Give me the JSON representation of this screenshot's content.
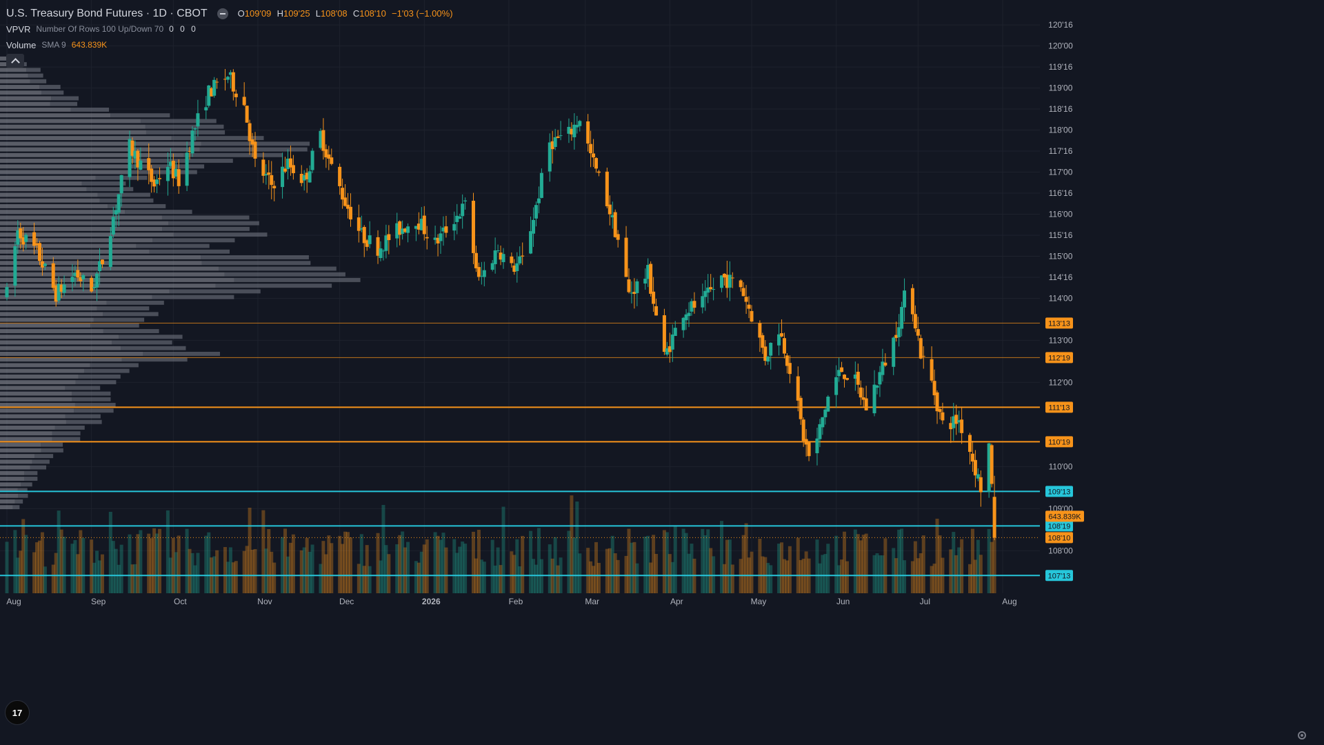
{
  "legend": {
    "title": "U.S. Treasury Bond Futures · 1D · CBOT",
    "open_key": "O",
    "open": "109'09",
    "high_key": "H",
    "high": "109'25",
    "low_key": "L",
    "low": "108'08",
    "close_key": "C",
    "close": "108'10",
    "change": "−1'03 (−1.00%)",
    "vpvr_name": "VPVR",
    "vpvr_params": "Number Of Rows 100 Up/Down 70",
    "vpvr_values": "0 0 0",
    "volume_name": "Volume",
    "volume_params": "SMA 9",
    "volume_value": "643.839K"
  },
  "logo": {
    "text": "17"
  },
  "colors": {
    "background": "#131722",
    "up": "#22ab94",
    "down": "#f7931a",
    "grid": "#1e222d",
    "axis_text": "#b2b5be",
    "level_orange": "#f7931a",
    "level_cyan": "#26c6da"
  },
  "chart_data": {
    "type": "candlestick",
    "title": "U.S. Treasury Bond Futures · 1D · CBOT",
    "y_unit": "points and 32nds",
    "ylim": [
      107.3,
      120.6
    ],
    "y_ticks": [
      "120'16",
      "120'00",
      "119'16",
      "119'00",
      "118'16",
      "118'00",
      "117'16",
      "117'00",
      "116'16",
      "116'00",
      "115'16",
      "115'00",
      "114'16",
      "114'00",
      "113'00",
      "112'00",
      "110'00",
      "109'00",
      "108'00"
    ],
    "x_ticks": [
      {
        "label": "Aug",
        "date": "2025-08-01"
      },
      {
        "label": "Sep",
        "date": "2025-09-01"
      },
      {
        "label": "Oct",
        "date": "2025-10-01"
      },
      {
        "label": "Nov",
        "date": "2025-11-01"
      },
      {
        "label": "Dec",
        "date": "2025-12-01"
      },
      {
        "label": "2026",
        "date": "2026-01-01"
      },
      {
        "label": "Feb",
        "date": "2026-02-01"
      },
      {
        "label": "Mar",
        "date": "2026-03-01"
      },
      {
        "label": "Apr",
        "date": "2026-04-01"
      },
      {
        "label": "May",
        "date": "2026-05-01"
      },
      {
        "label": "Jun",
        "date": "2026-06-01"
      },
      {
        "label": "Jul",
        "date": "2026-07-01"
      },
      {
        "label": "Aug",
        "date": "2026-08-01"
      }
    ],
    "x_range": [
      "2025-08-01",
      "2026-08-23"
    ],
    "price_path": {
      "start_date": "2025-08-01",
      "end_date": "2026-07-29",
      "anchors": [
        [
          "2025-08-01",
          114.1
        ],
        [
          "2025-08-05",
          115.6
        ],
        [
          "2025-08-12",
          115.1
        ],
        [
          "2025-08-19",
          114.1
        ],
        [
          "2025-08-26",
          114.6
        ],
        [
          "2025-09-01",
          114.2
        ],
        [
          "2025-09-05",
          114.9
        ],
        [
          "2025-09-10",
          116.2
        ],
        [
          "2025-09-15",
          117.6
        ],
        [
          "2025-09-19",
          117.2
        ],
        [
          "2025-09-24",
          116.7
        ],
        [
          "2025-09-29",
          117.2
        ],
        [
          "2025-10-03",
          116.8
        ],
        [
          "2025-10-08",
          117.9
        ],
        [
          "2025-10-14",
          118.9
        ],
        [
          "2025-10-21",
          119.3
        ],
        [
          "2025-10-27",
          118.6
        ],
        [
          "2025-10-31",
          117.2
        ],
        [
          "2025-11-06",
          116.7
        ],
        [
          "2025-11-12",
          117.2
        ],
        [
          "2025-11-18",
          116.8
        ],
        [
          "2025-11-24",
          117.9
        ],
        [
          "2025-11-28",
          117.1
        ],
        [
          "2025-12-03",
          116.3
        ],
        [
          "2025-12-09",
          115.5
        ],
        [
          "2025-12-15",
          115.2
        ],
        [
          "2025-12-22",
          115.6
        ],
        [
          "2025-12-29",
          115.9
        ],
        [
          "2026-01-05",
          115.3
        ],
        [
          "2026-01-12",
          115.9
        ],
        [
          "2026-01-16",
          116.2
        ],
        [
          "2026-01-21",
          114.4
        ],
        [
          "2026-01-28",
          115.2
        ],
        [
          "2026-02-02",
          114.7
        ],
        [
          "2026-02-06",
          114.9
        ],
        [
          "2026-02-11",
          116.2
        ],
        [
          "2026-02-16",
          117.7
        ],
        [
          "2026-02-23",
          117.9
        ],
        [
          "2026-02-27",
          118.3
        ],
        [
          "2026-03-03",
          117.4
        ],
        [
          "2026-03-09",
          116.3
        ],
        [
          "2026-03-13",
          115.4
        ],
        [
          "2026-03-17",
          114.1
        ],
        [
          "2026-03-24",
          114.6
        ],
        [
          "2026-03-30",
          112.6
        ],
        [
          "2026-04-06",
          113.7
        ],
        [
          "2026-04-13",
          113.9
        ],
        [
          "2026-04-20",
          114.5
        ],
        [
          "2026-04-27",
          114.3
        ],
        [
          "2026-05-01",
          113.6
        ],
        [
          "2026-05-06",
          112.6
        ],
        [
          "2026-05-11",
          113.3
        ],
        [
          "2026-05-16",
          112.1
        ],
        [
          "2026-05-20",
          110.7
        ],
        [
          "2026-05-23",
          110.0
        ],
        [
          "2026-05-26",
          110.9
        ],
        [
          "2026-05-30",
          111.9
        ],
        [
          "2026-06-03",
          112.3
        ],
        [
          "2026-06-08",
          112.0
        ],
        [
          "2026-06-12",
          111.4
        ],
        [
          "2026-06-17",
          112.2
        ],
        [
          "2026-06-22",
          113.0
        ],
        [
          "2026-06-26",
          114.0
        ],
        [
          "2026-06-29",
          113.8
        ],
        [
          "2026-07-02",
          112.7
        ],
        [
          "2026-07-06",
          112.0
        ],
        [
          "2026-07-10",
          111.0
        ],
        [
          "2026-07-16",
          111.1
        ],
        [
          "2026-07-20",
          110.4
        ],
        [
          "2026-07-24",
          109.5
        ],
        [
          "2026-07-27",
          110.5
        ],
        [
          "2026-07-29",
          108.31
        ]
      ]
    },
    "last_bar": {
      "date": "2026-07-29",
      "open": 109.28,
      "high": 109.78,
      "low": 108.25,
      "close": 108.31
    },
    "volume": {
      "current": "643.839K",
      "range_min": 0,
      "range_max": 1000
    },
    "levels": [
      {
        "label": "113'13",
        "price": 113.41,
        "color": "orange",
        "style": "thin"
      },
      {
        "label": "112'19",
        "price": 112.59,
        "color": "orange",
        "style": "thin"
      },
      {
        "label": "111'13",
        "price": 111.41,
        "color": "orange",
        "style": "thick"
      },
      {
        "label": "110'19",
        "price": 110.59,
        "color": "orange",
        "style": "thick"
      },
      {
        "label": "109'13",
        "price": 109.41,
        "color": "cyan",
        "style": "thick"
      },
      {
        "label": "108'19",
        "price": 108.59,
        "color": "cyan",
        "style": "thick"
      },
      {
        "label": "107'13",
        "price": 107.41,
        "color": "cyan",
        "style": "thick"
      }
    ],
    "last_price_label": {
      "label": "108'10",
      "price": 108.31
    },
    "volume_value_label": {
      "label": "643.839K",
      "price": 108.82
    },
    "volume_profile": {
      "rows": 100,
      "up_down_pct": 70,
      "top_price": 119.7,
      "bottom_price": 108.9,
      "profile_points": [
        [
          119.7,
          30
        ],
        [
          119.0,
          90
        ],
        [
          118.6,
          120
        ],
        [
          118.2,
          320
        ],
        [
          117.6,
          430
        ],
        [
          117.2,
          330
        ],
        [
          116.8,
          200
        ],
        [
          116.2,
          220
        ],
        [
          115.8,
          410
        ],
        [
          115.2,
          300
        ],
        [
          114.7,
          530
        ],
        [
          114.3,
          440
        ],
        [
          113.8,
          210
        ],
        [
          113.2,
          220
        ],
        [
          112.7,
          295
        ],
        [
          112.4,
          215
        ],
        [
          111.9,
          140
        ],
        [
          111.4,
          165
        ],
        [
          110.8,
          125
        ],
        [
          110.2,
          70
        ],
        [
          109.6,
          50
        ],
        [
          108.9,
          20
        ]
      ],
      "legend_values": "0 0 0"
    },
    "grid": true,
    "legend_position": "top-left"
  }
}
